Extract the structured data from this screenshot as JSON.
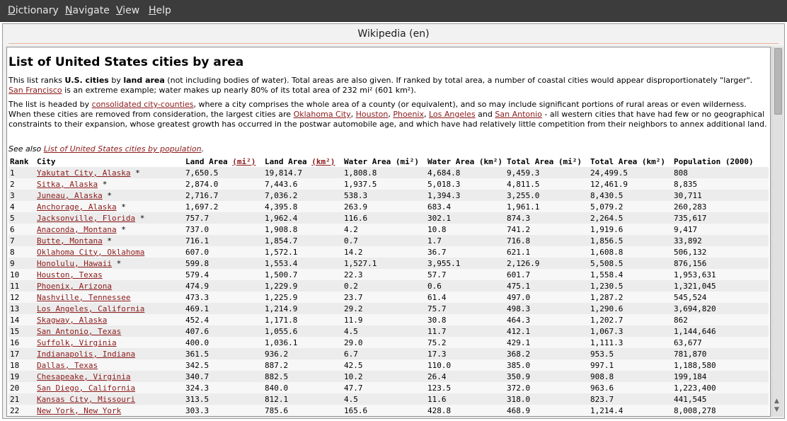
{
  "menu": [
    {
      "label": "Dictionary",
      "mnemonic": "D",
      "rest": "ictionary"
    },
    {
      "label": "Navigate",
      "mnemonic": "N",
      "rest": "avigate"
    },
    {
      "label": "View",
      "mnemonic": "V",
      "rest": "iew"
    },
    {
      "label": "Help",
      "mnemonic": "H",
      "rest": "elp"
    }
  ],
  "tab_title": "Wikipedia (en)",
  "article": {
    "title": "List of United States cities by area",
    "intro": {
      "t1": "This list ranks ",
      "b1": "U.S. cities",
      "t2": " by ",
      "b2": "land area",
      "t3": " (not including bodies of water). Total areas are also given. If ranked by total area, a number of coastal cities would appear disproportionately \"larger\". ",
      "link_sf": "San Francisco",
      "t4": " is an extreme example; water makes up nearly 80% of its total area of 232 mi² (601 km²)."
    },
    "second": {
      "t1": "The list is headed by ",
      "link_cc": "consolidated city-counties",
      "t2": ", where a city comprises the whole area of a county (or equivalent), and so may include significant portions of rural areas or even wilderness. When these cities are removed from consideration, the largest cities are ",
      "link_okc": "Oklahoma City",
      "sep1": ", ",
      "link_hou": "Houston",
      "sep2": ", ",
      "link_phx": "Phoenix",
      "sep3": ", ",
      "link_la": "Los Angeles",
      "sep4": " and ",
      "link_sa": "San Antonio",
      "t3": " - all western cities that have had few or no geographical constraints to their expansion, whose greatest growth has occurred in the postwar automobile age, and which have had relatively little competition from their neighbors to annex additional land."
    },
    "see_also": {
      "prefix": "See also ",
      "link": "List of United States cities by population",
      "suffix": "."
    }
  },
  "table": {
    "headers": {
      "rank": "Rank",
      "city": "City",
      "land_mi_pre": "Land Area ",
      "land_mi_link": "(mi²)",
      "land_km_pre": "Land Area ",
      "land_km_link": "(km²)",
      "water_mi": "Water Area (mi²)",
      "water_km": "Water Area (km²)",
      "total_mi": "Total Area (mi²)",
      "total_km": "Total Area (km²)",
      "pop": "Population (2000)"
    },
    "rows": [
      {
        "rank": "1",
        "city": "Yakutat City, Alaska",
        "mark": " *",
        "land_mi": "7,650.5",
        "land_km": "19,814.7",
        "water_mi": "1,808.8",
        "water_km": "4,684.8",
        "total_mi": "9,459.3",
        "total_km": "24,499.5",
        "pop": "808"
      },
      {
        "rank": "2",
        "city": "Sitka, Alaska",
        "mark": " *",
        "land_mi": "2,874.0",
        "land_km": "7,443.6",
        "water_mi": "1,937.5",
        "water_km": "5,018.3",
        "total_mi": "4,811.5",
        "total_km": "12,461.9",
        "pop": "8,835"
      },
      {
        "rank": "3",
        "city": "Juneau, Alaska",
        "mark": " *",
        "land_mi": "2,716.7",
        "land_km": "7,036.2",
        "water_mi": "538.3",
        "water_km": "1,394.3",
        "total_mi": "3,255.0",
        "total_km": "8,430.5",
        "pop": "30,711"
      },
      {
        "rank": "4",
        "city": "Anchorage, Alaska",
        "mark": " *",
        "land_mi": "1,697.2",
        "land_km": "4,395.8",
        "water_mi": "263.9",
        "water_km": "683.4",
        "total_mi": "1,961.1",
        "total_km": "5,079.2",
        "pop": "260,283"
      },
      {
        "rank": "5",
        "city": "Jacksonville, Florida",
        "mark": " *",
        "land_mi": "757.7",
        "land_km": "1,962.4",
        "water_mi": "116.6",
        "water_km": "302.1",
        "total_mi": "874.3",
        "total_km": "2,264.5",
        "pop": "735,617"
      },
      {
        "rank": "6",
        "city": "Anaconda, Montana",
        "mark": " *",
        "land_mi": "737.0",
        "land_km": "1,908.8",
        "water_mi": "4.2",
        "water_km": "10.8",
        "total_mi": "741.2",
        "total_km": "1,919.6",
        "pop": "9,417"
      },
      {
        "rank": "7",
        "city": "Butte, Montana",
        "mark": " *",
        "land_mi": "716.1",
        "land_km": "1,854.7",
        "water_mi": "0.7",
        "water_km": "1.7",
        "total_mi": "716.8",
        "total_km": "1,856.5",
        "pop": "33,892"
      },
      {
        "rank": "8",
        "city": "Oklahoma City, Oklahoma",
        "mark": "",
        "land_mi": "607.0",
        "land_km": "1,572.1",
        "water_mi": "14.2",
        "water_km": "36.7",
        "total_mi": "621.1",
        "total_km": "1,608.8",
        "pop": "506,132"
      },
      {
        "rank": "9",
        "city": "Honolulu, Hawaii",
        "mark": " *",
        "land_mi": "599.8",
        "land_km": "1,553.4",
        "water_mi": "1,527.1",
        "water_km": "3,955.1",
        "total_mi": "2,126.9",
        "total_km": "5,508.5",
        "pop": "876,156"
      },
      {
        "rank": "10",
        "city": "Houston, Texas",
        "mark": "",
        "land_mi": "579.4",
        "land_km": "1,500.7",
        "water_mi": "22.3",
        "water_km": "57.7",
        "total_mi": "601.7",
        "total_km": "1,558.4",
        "pop": "1,953,631"
      },
      {
        "rank": "11",
        "city": "Phoenix, Arizona",
        "mark": "",
        "land_mi": "474.9",
        "land_km": "1,229.9",
        "water_mi": "0.2",
        "water_km": "0.6",
        "total_mi": "475.1",
        "total_km": "1,230.5",
        "pop": "1,321,045"
      },
      {
        "rank": "12",
        "city": "Nashville, Tennessee",
        "mark": "",
        "land_mi": "473.3",
        "land_km": "1,225.9",
        "water_mi": "23.7",
        "water_km": "61.4",
        "total_mi": "497.0",
        "total_km": "1,287.2",
        "pop": "545,524"
      },
      {
        "rank": "13",
        "city": "Los Angeles, California",
        "mark": "",
        "land_mi": "469.1",
        "land_km": "1,214.9",
        "water_mi": "29.2",
        "water_km": "75.7",
        "total_mi": "498.3",
        "total_km": "1,290.6",
        "pop": "3,694,820"
      },
      {
        "rank": "14",
        "city": "Skagway, Alaska",
        "mark": "",
        "land_mi": "452.4",
        "land_km": "1,171.8",
        "water_mi": "11.9",
        "water_km": "30.8",
        "total_mi": "464.3",
        "total_km": "1,202.7",
        "pop": "862"
      },
      {
        "rank": "15",
        "city": "San Antonio, Texas",
        "mark": "",
        "land_mi": "407.6",
        "land_km": "1,055.6",
        "water_mi": "4.5",
        "water_km": "11.7",
        "total_mi": "412.1",
        "total_km": "1,067.3",
        "pop": "1,144,646"
      },
      {
        "rank": "16",
        "city": "Suffolk, Virginia",
        "mark": "",
        "land_mi": "400.0",
        "land_km": "1,036.1",
        "water_mi": "29.0",
        "water_km": "75.2",
        "total_mi": "429.1",
        "total_km": "1,111.3",
        "pop": "63,677"
      },
      {
        "rank": "17",
        "city": "Indianapolis, Indiana",
        "mark": "",
        "land_mi": "361.5",
        "land_km": "936.2",
        "water_mi": "6.7",
        "water_km": "17.3",
        "total_mi": "368.2",
        "total_km": "953.5",
        "pop": "781,870"
      },
      {
        "rank": "18",
        "city": "Dallas, Texas",
        "mark": "",
        "land_mi": "342.5",
        "land_km": "887.2",
        "water_mi": "42.5",
        "water_km": "110.0",
        "total_mi": "385.0",
        "total_km": "997.1",
        "pop": "1,188,580"
      },
      {
        "rank": "19",
        "city": "Chesapeake, Virginia",
        "mark": "",
        "land_mi": "340.7",
        "land_km": "882.5",
        "water_mi": "10.2",
        "water_km": "26.4",
        "total_mi": "350.9",
        "total_km": "908.8",
        "pop": "199,184"
      },
      {
        "rank": "20",
        "city": "San Diego, California",
        "mark": "",
        "land_mi": "324.3",
        "land_km": "840.0",
        "water_mi": "47.7",
        "water_km": "123.5",
        "total_mi": "372.0",
        "total_km": "963.6",
        "pop": "1,223,400"
      },
      {
        "rank": "21",
        "city": "Kansas City, Missouri",
        "mark": "",
        "land_mi": "313.5",
        "land_km": "812.1",
        "water_mi": "4.5",
        "water_km": "11.6",
        "total_mi": "318.0",
        "total_km": "823.7",
        "pop": "441,545"
      },
      {
        "rank": "22",
        "city": "New York, New York",
        "mark": "",
        "land_mi": "303.3",
        "land_km": "785.6",
        "water_mi": "165.6",
        "water_km": "428.8",
        "total_mi": "468.9",
        "total_km": "1,214.4",
        "pop": "8,008,278"
      }
    ]
  },
  "colors": {
    "link": "#8b1a1a",
    "menubar": "#3c3c3c",
    "row_alt": "#ececec"
  }
}
